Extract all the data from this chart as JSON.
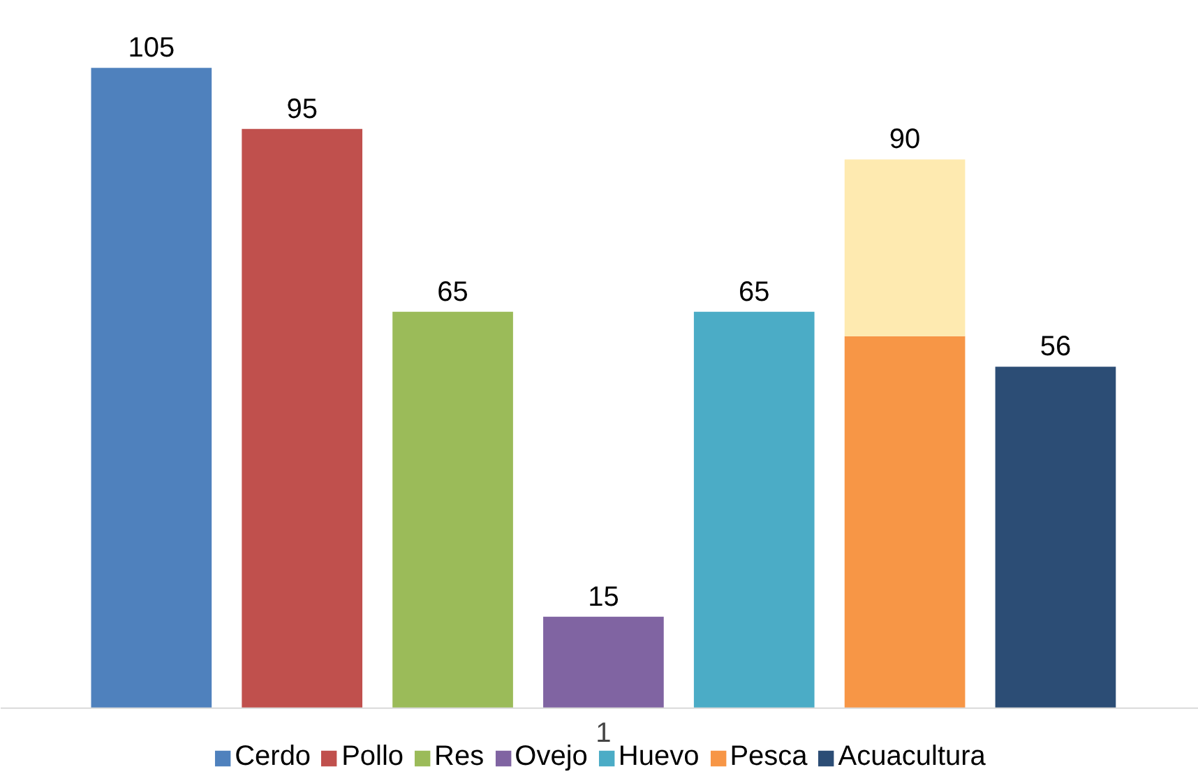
{
  "chart_data": {
    "type": "bar",
    "stacked": true,
    "categories": [
      null,
      null,
      null,
      null,
      null,
      null,
      null
    ],
    "series": [
      {
        "name": "Cerdo",
        "color": "#4f81bd",
        "values": [
          105,
          null,
          null,
          null,
          null,
          null,
          null
        ],
        "value_labels": [
          "105",
          null,
          null,
          null,
          null,
          null,
          null
        ]
      },
      {
        "name": "Pollo",
        "color": "#c0504d",
        "values": [
          null,
          95,
          null,
          null,
          null,
          null,
          null
        ],
        "value_labels": [
          null,
          "95",
          null,
          null,
          null,
          null,
          null
        ]
      },
      {
        "name": "Res",
        "color": "#9bbb59",
        "values": [
          null,
          null,
          65,
          null,
          null,
          null,
          null
        ],
        "value_labels": [
          null,
          null,
          "65",
          null,
          null,
          null,
          null
        ]
      },
      {
        "name": "Ovejo",
        "color": "#8064a2",
        "values": [
          null,
          null,
          null,
          15,
          null,
          null,
          null
        ],
        "value_labels": [
          null,
          null,
          null,
          "15",
          null,
          null,
          null
        ]
      },
      {
        "name": "Huevo",
        "color": "#4bacc6",
        "values": [
          null,
          null,
          null,
          null,
          65,
          null,
          null
        ],
        "value_labels": [
          null,
          null,
          null,
          null,
          "65",
          null,
          null
        ]
      },
      {
        "name": "Pesca",
        "color": "#f79646",
        "values": [
          null,
          null,
          null,
          null,
          null,
          61,
          null
        ]
      },
      {
        "name": "Acuacultura",
        "color": "#2c4d75",
        "values": [
          null,
          null,
          null,
          null,
          null,
          null,
          56
        ],
        "value_labels": [
          null,
          null,
          null,
          null,
          null,
          null,
          "56"
        ]
      },
      {
        "color": "#feeab0",
        "values": [
          null,
          null,
          null,
          null,
          null,
          29,
          null
        ]
      }
    ],
    "totals": [
      null,
      null,
      null,
      null,
      null,
      "90",
      null
    ],
    "annotations": [
      "1"
    ],
    "legend": "bottom",
    "grid": false
  }
}
